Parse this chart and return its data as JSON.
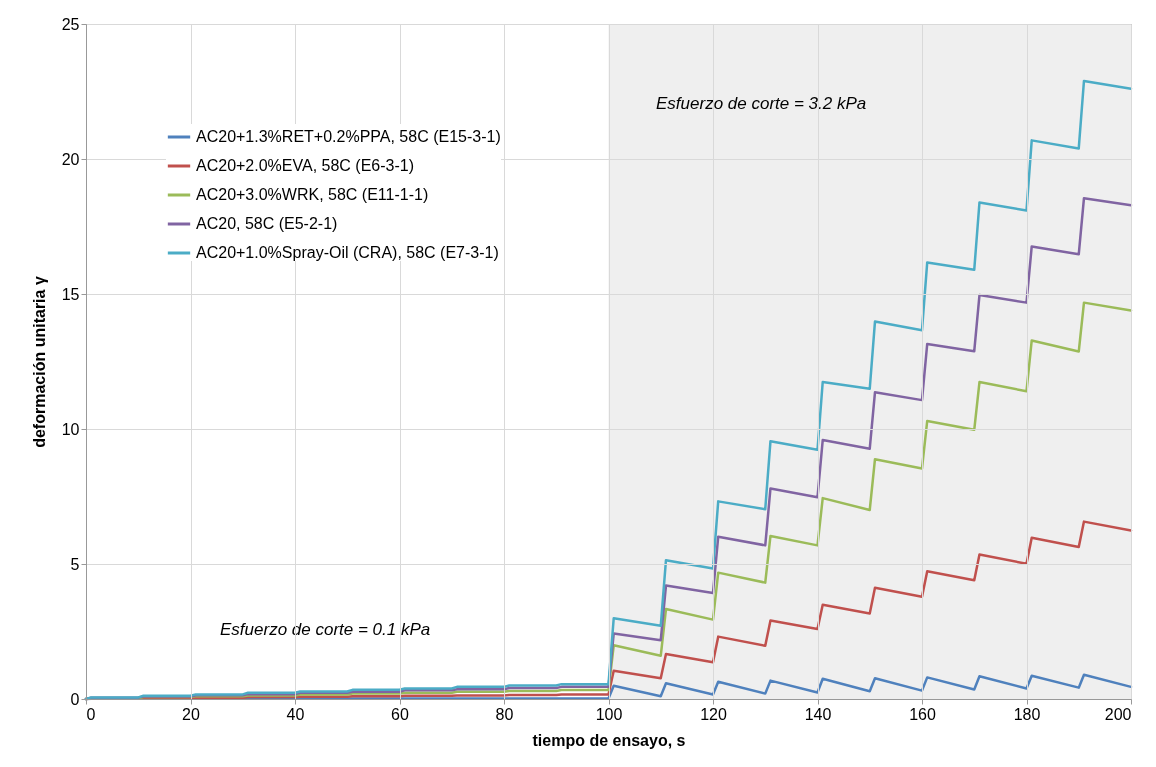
{
  "chart_data": {
    "type": "line",
    "xlabel": "tiempo de ensayo, s",
    "ylabel": "deformación unitaria γ",
    "x": [
      0,
      1,
      10,
      11,
      20,
      21,
      30,
      31,
      40,
      41,
      50,
      51,
      60,
      61,
      70,
      71,
      80,
      81,
      90,
      91,
      100,
      101,
      110,
      111,
      120,
      121,
      130,
      131,
      140,
      141,
      150,
      151,
      160,
      161,
      170,
      171,
      180,
      181,
      190,
      191,
      200
    ],
    "series": [
      {
        "name": "AC20+1.3%RET+0.2%PPA, 58C (E15-3-1)",
        "color": "#4f81bd",
        "values": [
          0,
          0.01,
          0.01,
          0.01,
          0.01,
          0.01,
          0.01,
          0.02,
          0.02,
          0.02,
          0.02,
          0.02,
          0.02,
          0.02,
          0.02,
          0.02,
          0.02,
          0.02,
          0.02,
          0.02,
          0.02,
          0.49,
          0.1,
          0.58,
          0.17,
          0.64,
          0.2,
          0.68,
          0.24,
          0.75,
          0.29,
          0.77,
          0.31,
          0.8,
          0.35,
          0.84,
          0.39,
          0.86,
          0.42,
          0.9,
          0.45
        ]
      },
      {
        "name": "AC20+2.0%EVA, 58C (E6-3-1)",
        "color": "#c0504d",
        "values": [
          0,
          0.02,
          0.02,
          0.03,
          0.03,
          0.05,
          0.05,
          0.07,
          0.07,
          0.08,
          0.08,
          0.1,
          0.1,
          0.12,
          0.12,
          0.13,
          0.13,
          0.15,
          0.15,
          0.17,
          0.17,
          1.05,
          0.77,
          1.67,
          1.36,
          2.31,
          1.97,
          2.91,
          2.59,
          3.49,
          3.17,
          4.12,
          3.79,
          4.73,
          4.4,
          5.35,
          5.01,
          5.97,
          5.63,
          6.57,
          6.24
        ]
      },
      {
        "name": "AC20+3.0%WRK, 58C (E11-1-1)",
        "color": "#9bbb59",
        "values": [
          0,
          0.03,
          0.03,
          0.07,
          0.07,
          0.1,
          0.1,
          0.13,
          0.13,
          0.17,
          0.17,
          0.2,
          0.2,
          0.23,
          0.23,
          0.27,
          0.27,
          0.3,
          0.3,
          0.33,
          0.33,
          1.99,
          1.6,
          3.33,
          2.94,
          4.68,
          4.31,
          6.04,
          5.69,
          7.44,
          7.0,
          8.88,
          8.54,
          10.3,
          9.97,
          11.74,
          11.4,
          13.28,
          12.87,
          14.68,
          14.39
        ]
      },
      {
        "name": "AC20, 58C (E5-2-1)",
        "color": "#8064a2",
        "values": [
          0,
          0.05,
          0.05,
          0.09,
          0.09,
          0.14,
          0.14,
          0.18,
          0.18,
          0.23,
          0.23,
          0.27,
          0.27,
          0.32,
          0.32,
          0.36,
          0.36,
          0.41,
          0.41,
          0.45,
          0.45,
          2.43,
          2.18,
          4.2,
          3.93,
          6.01,
          5.69,
          7.8,
          7.47,
          9.59,
          9.27,
          11.36,
          11.07,
          13.15,
          12.88,
          14.96,
          14.68,
          16.76,
          16.47,
          18.55,
          18.29
        ]
      },
      {
        "name": "AC20+1.0%Spray-Oil (CRA), 58C (E7-3-1)",
        "color": "#4bacc6",
        "values": [
          0,
          0.06,
          0.06,
          0.12,
          0.12,
          0.17,
          0.17,
          0.23,
          0.23,
          0.28,
          0.28,
          0.34,
          0.34,
          0.39,
          0.39,
          0.45,
          0.45,
          0.5,
          0.5,
          0.55,
          0.55,
          2.99,
          2.71,
          5.14,
          4.83,
          7.32,
          7.03,
          9.55,
          9.23,
          11.74,
          11.49,
          13.98,
          13.66,
          16.17,
          15.9,
          18.39,
          18.09,
          20.69,
          20.39,
          22.89,
          22.6
        ]
      }
    ],
    "xlim": [
      0,
      200
    ],
    "xticks": [
      0,
      20,
      40,
      60,
      80,
      100,
      120,
      140,
      160,
      180,
      200
    ],
    "ylim": [
      0,
      25
    ],
    "yticks": [
      0,
      5,
      10,
      15,
      20,
      25
    ],
    "bands": [
      {
        "axis": "x",
        "from": 100,
        "to": 200,
        "color": "#efefef"
      }
    ],
    "annotations": [
      "Esfuerzo de corte = 0.1 kPa",
      "Esfuerzo de corte = 3.2 kPa"
    ],
    "grid": true,
    "legend": "top left",
    "marker": "none",
    "line_style": "solid"
  }
}
